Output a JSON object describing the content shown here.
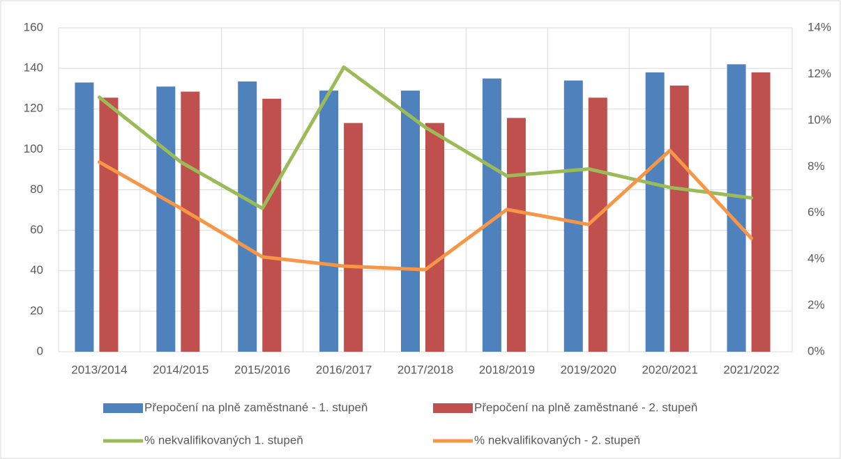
{
  "chart_data": {
    "type": "bar-line",
    "categories": [
      "2013/2014",
      "2014/2015",
      "2015/2016",
      "2016/2017",
      "2017/2018",
      "2018/2019",
      "2019/2020",
      "2020/2021",
      "2021/2022"
    ],
    "series": [
      {
        "name": "Přepočení na plně zaměstnané - 1. stupeň",
        "color": "#4f81bd",
        "type": "bar",
        "values": [
          133,
          131,
          133.5,
          129,
          129,
          135,
          134,
          138,
          142
        ]
      },
      {
        "name": "Přepočení na plně zaměstnané - 2. stupeň",
        "color": "#c0504d",
        "type": "bar",
        "values": [
          125.5,
          128.5,
          125,
          113,
          113,
          115.5,
          125.5,
          131.5,
          138
        ]
      },
      {
        "name": "% nekvalifikovaných 1. stupeň",
        "color": "#9bbb59",
        "type": "line",
        "axis": "y2",
        "values": [
          11.0,
          8.2,
          6.2,
          12.3,
          9.7,
          7.6,
          7.9,
          7.1,
          6.65
        ]
      },
      {
        "name": "% nekvalifikovaných - 2. stupeň",
        "color": "#f79646",
        "type": "line",
        "axis": "y2",
        "values": [
          8.2,
          6.2,
          4.1,
          3.7,
          3.55,
          6.15,
          5.5,
          8.7,
          4.9
        ]
      }
    ],
    "ylim": [
      0,
      160
    ],
    "yticks": [
      0,
      20,
      40,
      60,
      80,
      100,
      120,
      140,
      160
    ],
    "y2lim": [
      0,
      14
    ],
    "y2ticks": [
      {
        "value": 0,
        "label": "0%"
      },
      {
        "value": 2,
        "label": "2%"
      },
      {
        "value": 4,
        "label": "4%"
      },
      {
        "value": 6,
        "label": "6%"
      },
      {
        "value": 8,
        "label": "8%"
      },
      {
        "value": 10,
        "label": "10%"
      },
      {
        "value": 12,
        "label": "12%"
      },
      {
        "value": 14,
        "label": "14%"
      }
    ],
    "grid": true,
    "legend": "bottom"
  }
}
